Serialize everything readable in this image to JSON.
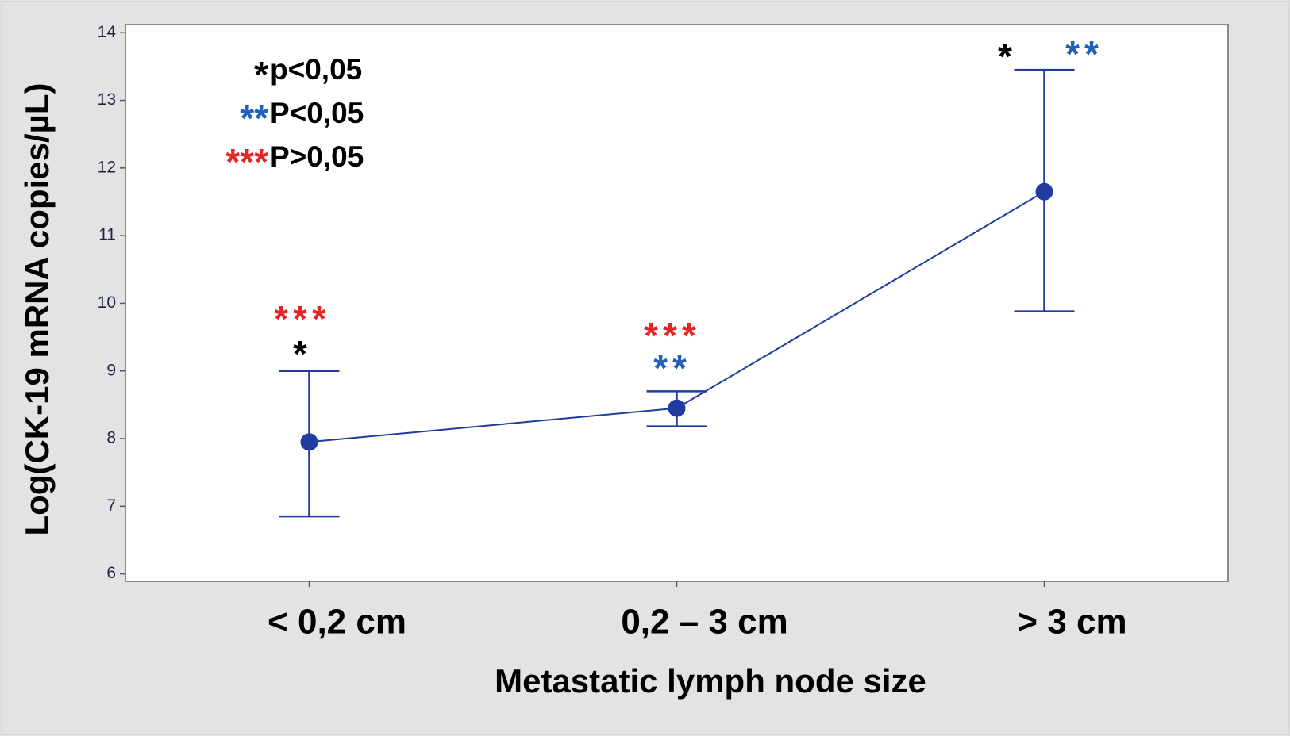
{
  "chart_data": {
    "type": "line",
    "y_label": "Log(CK-19 mRNA copies/µL)",
    "x_label": "Metastatic lymph node size",
    "categories": [
      "< 0,2 cm",
      "0,2 – 3 cm",
      "> 3 cm"
    ],
    "series": [
      {
        "color": "#1f3c9e",
        "values": [
          7.95,
          8.45,
          11.65
        ],
        "ci_upper": [
          9.0,
          8.7,
          13.45
        ],
        "ci_lower": [
          6.85,
          8.18,
          9.88
        ]
      }
    ],
    "ylim": [
      5.89,
      14.12
    ],
    "yticks": [
      6,
      7,
      8,
      9,
      10,
      11,
      12,
      13,
      14
    ],
    "legend": [
      {
        "symbol": "*",
        "color": "#000000",
        "label": "p<0,05"
      },
      {
        "symbol": "**",
        "color": "#2060b8",
        "label": "P<0,05"
      },
      {
        "symbol": "***",
        "color": "#e42525",
        "label": "P>0,05"
      }
    ],
    "annotations": [
      {
        "text": "***",
        "color": "#e42525"
      },
      {
        "text": "*",
        "color": "#000000"
      },
      {
        "text": "***",
        "color": "#e42525"
      },
      {
        "text": "**",
        "color": "#2060b8"
      },
      {
        "text": "*",
        "color": "#000000"
      },
      {
        "text": "**",
        "color": "#2060b8"
      }
    ]
  }
}
